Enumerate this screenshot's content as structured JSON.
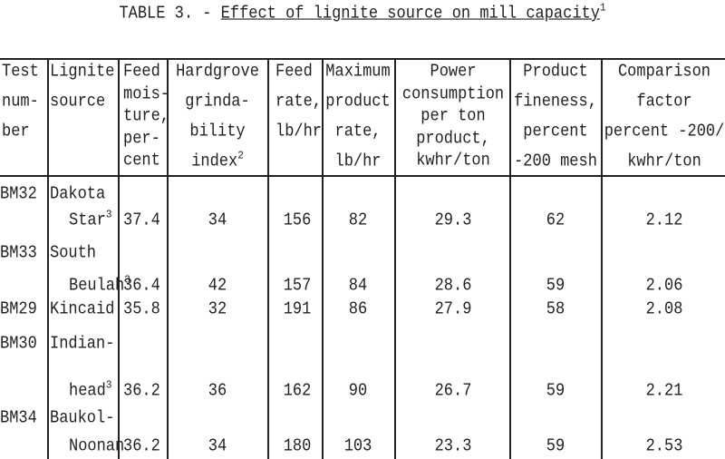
{
  "title": {
    "label": "TABLE 3. -",
    "text": "Effect of lignite source on mill capacity",
    "note": "1"
  },
  "table": {
    "headers": [
      {
        "lines": [
          "Test",
          "num-",
          "ber"
        ]
      },
      {
        "lines": [
          "Lignite",
          "source"
        ]
      },
      {
        "lines": [
          "Feed",
          "mois-",
          "ture,",
          "per-",
          "cent"
        ]
      },
      {
        "lines": [
          "Hardgrove",
          "grinda-",
          "bility",
          "index"
        ],
        "note": "2"
      },
      {
        "lines": [
          "Feed",
          "rate,",
          "lb/hr"
        ]
      },
      {
        "lines": [
          "Maximum",
          "product",
          "rate,",
          "lb/hr"
        ]
      },
      {
        "lines": [
          "Power",
          "consumption",
          "per ton",
          "product,",
          "kwhr/ton"
        ]
      },
      {
        "lines": [
          "Product",
          "fineness,",
          "percent",
          "-200 mesh"
        ]
      },
      {
        "lines": [
          "Comparison",
          "factor",
          "percent -200/",
          "kwhr/ton"
        ]
      }
    ],
    "rows": [
      {
        "test": "BM32",
        "source": [
          "Dakota",
          "Star"
        ],
        "note": "3",
        "values": [
          "37.4",
          "34",
          "156",
          "82",
          "29.3",
          "62",
          "2.12"
        ]
      },
      {
        "test": "BM33",
        "source": [
          "South",
          "Beulah"
        ],
        "note": "3",
        "values": [
          "36.4",
          "42",
          "157",
          "84",
          "28.6",
          "59",
          "2.06"
        ]
      },
      {
        "test": "BM29",
        "source": [
          "Kincaid"
        ],
        "values": [
          "35.8",
          "32",
          "191",
          "86",
          "27.9",
          "58",
          "2.08"
        ]
      },
      {
        "test": "BM30",
        "source": [
          "Indian-",
          "head"
        ],
        "note": "3",
        "values": [
          "36.2",
          "36",
          "162",
          "90",
          "26.7",
          "59",
          "2.21"
        ]
      },
      {
        "test": "BM34",
        "source": [
          "Baukol-",
          "Noonan"
        ],
        "values": [
          "36.2",
          "34",
          "180",
          "103",
          "23.3",
          "59",
          "2.53"
        ]
      }
    ]
  }
}
